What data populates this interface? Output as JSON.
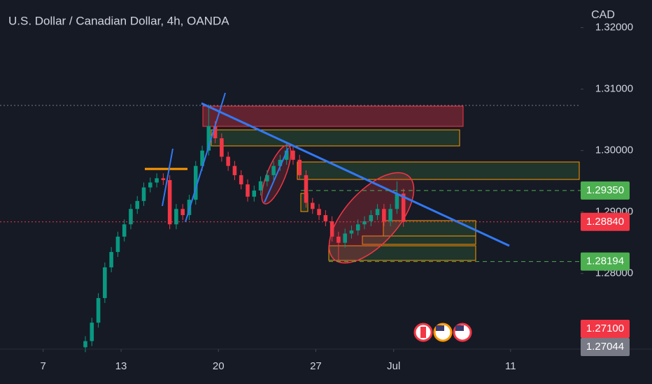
{
  "chart_data": {
    "type": "candlestick",
    "title": "U.S. Dollar / Canadian Dollar, 4h, OANDA",
    "currency": "CAD",
    "up_color": "#089981",
    "down_color": "#f23645",
    "xlim": [
      -37.3,
      141.6
    ],
    "ylim": [
      1.2677,
      1.3245
    ],
    "xticks": [
      {
        "value": -24,
        "label": "7"
      },
      {
        "value": 0,
        "label": "13"
      },
      {
        "value": 30,
        "label": "20"
      },
      {
        "value": 60,
        "label": "27"
      },
      {
        "value": 84,
        "label": "Jul"
      },
      {
        "value": 120,
        "label": "11"
      }
    ],
    "yticks": [
      {
        "value": 1.32,
        "label": "1.32000"
      },
      {
        "value": 1.31,
        "label": "1.31000"
      },
      {
        "value": 1.3,
        "label": "1.30000"
      },
      {
        "value": 1.29,
        "label": "1.29000"
      },
      {
        "value": 1.28,
        "label": "1.28000"
      }
    ],
    "price_labels": [
      {
        "value": 1.2935,
        "label": "1.29350",
        "color": "#4caf50"
      },
      {
        "value": 1.2884,
        "label": "1.28840",
        "color": "#f23645"
      },
      {
        "value": 1.28194,
        "label": "1.28194",
        "color": "#4caf50"
      },
      {
        "value": 1.271,
        "label": "1.27100",
        "color": "#f23645"
      },
      {
        "value": 1.27044,
        "label": "1.27044",
        "color": "#787b86"
      }
    ],
    "x": [
      -11,
      -9,
      -7,
      -5,
      -3,
      -1,
      1,
      3,
      5,
      7,
      9,
      11,
      13,
      15,
      17,
      19,
      21,
      23,
      25,
      27,
      29,
      31,
      33,
      35,
      37,
      39,
      41,
      43,
      45,
      47,
      49,
      51,
      53,
      55,
      57,
      59,
      61,
      63,
      65,
      67,
      69,
      71,
      73,
      75,
      77,
      79,
      81,
      83,
      85,
      87
    ],
    "open": [
      1.268,
      1.269,
      1.272,
      1.276,
      1.281,
      1.2835,
      1.286,
      1.288,
      1.2905,
      1.2918,
      1.294,
      1.2948,
      1.2955,
      1.2952,
      1.288,
      1.2905,
      1.2895,
      1.292,
      1.2975,
      1.3,
      1.304,
      1.302,
      1.299,
      1.2975,
      1.296,
      1.2945,
      1.2925,
      1.2935,
      1.295,
      1.296,
      1.2975,
      1.2985,
      1.3,
      1.2985,
      1.296,
      1.2915,
      1.2905,
      1.2895,
      1.2885,
      1.286,
      1.285,
      1.2865,
      1.287,
      1.288,
      1.2885,
      1.2895,
      1.2905,
      1.2885,
      1.2905,
      1.293
    ],
    "high": [
      1.2698,
      1.2728,
      1.2768,
      1.2818,
      1.2843,
      1.2868,
      1.2888,
      1.2913,
      1.2926,
      1.2948,
      1.2956,
      1.2963,
      1.2963,
      1.296,
      1.2913,
      1.2913,
      1.2928,
      1.2983,
      1.3008,
      1.3075,
      1.3048,
      1.3028,
      1.2998,
      1.2983,
      1.2968,
      1.2953,
      1.2943,
      1.2958,
      1.2968,
      1.2983,
      1.2993,
      1.3012,
      1.3008,
      1.2993,
      1.2968,
      1.2923,
      1.2913,
      1.2903,
      1.2893,
      1.2868,
      1.2873,
      1.2878,
      1.2888,
      1.2893,
      1.2903,
      1.2913,
      1.2913,
      1.2913,
      1.295,
      1.2938
    ],
    "low": [
      1.2672,
      1.2682,
      1.2712,
      1.2752,
      1.2802,
      1.2827,
      1.2852,
      1.2872,
      1.2897,
      1.291,
      1.2932,
      1.294,
      1.2944,
      1.2872,
      1.2872,
      1.2887,
      1.2887,
      1.2912,
      1.2967,
      1.2992,
      1.3012,
      1.2982,
      1.2967,
      1.2952,
      1.2937,
      1.2917,
      1.2917,
      1.2927,
      1.2942,
      1.2952,
      1.2967,
      1.2977,
      1.2977,
      1.2952,
      1.2907,
      1.2897,
      1.2887,
      1.2877,
      1.2852,
      1.2822,
      1.2842,
      1.2857,
      1.2862,
      1.2872,
      1.2877,
      1.2887,
      1.2877,
      1.2877,
      1.2897,
      1.2876
    ],
    "close": [
      1.269,
      1.272,
      1.276,
      1.281,
      1.2835,
      1.286,
      1.288,
      1.2905,
      1.2918,
      1.294,
      1.2948,
      1.2955,
      1.2952,
      1.288,
      1.2905,
      1.2895,
      1.292,
      1.2975,
      1.3,
      1.304,
      1.302,
      1.299,
      1.2975,
      1.296,
      1.2945,
      1.2925,
      1.2935,
      1.295,
      1.296,
      1.2975,
      1.2985,
      1.3,
      1.2985,
      1.296,
      1.2915,
      1.2905,
      1.2895,
      1.2885,
      1.286,
      1.285,
      1.2865,
      1.287,
      1.288,
      1.2885,
      1.2895,
      1.2905,
      1.2885,
      1.2905,
      1.293,
      1.2884
    ]
  }
}
